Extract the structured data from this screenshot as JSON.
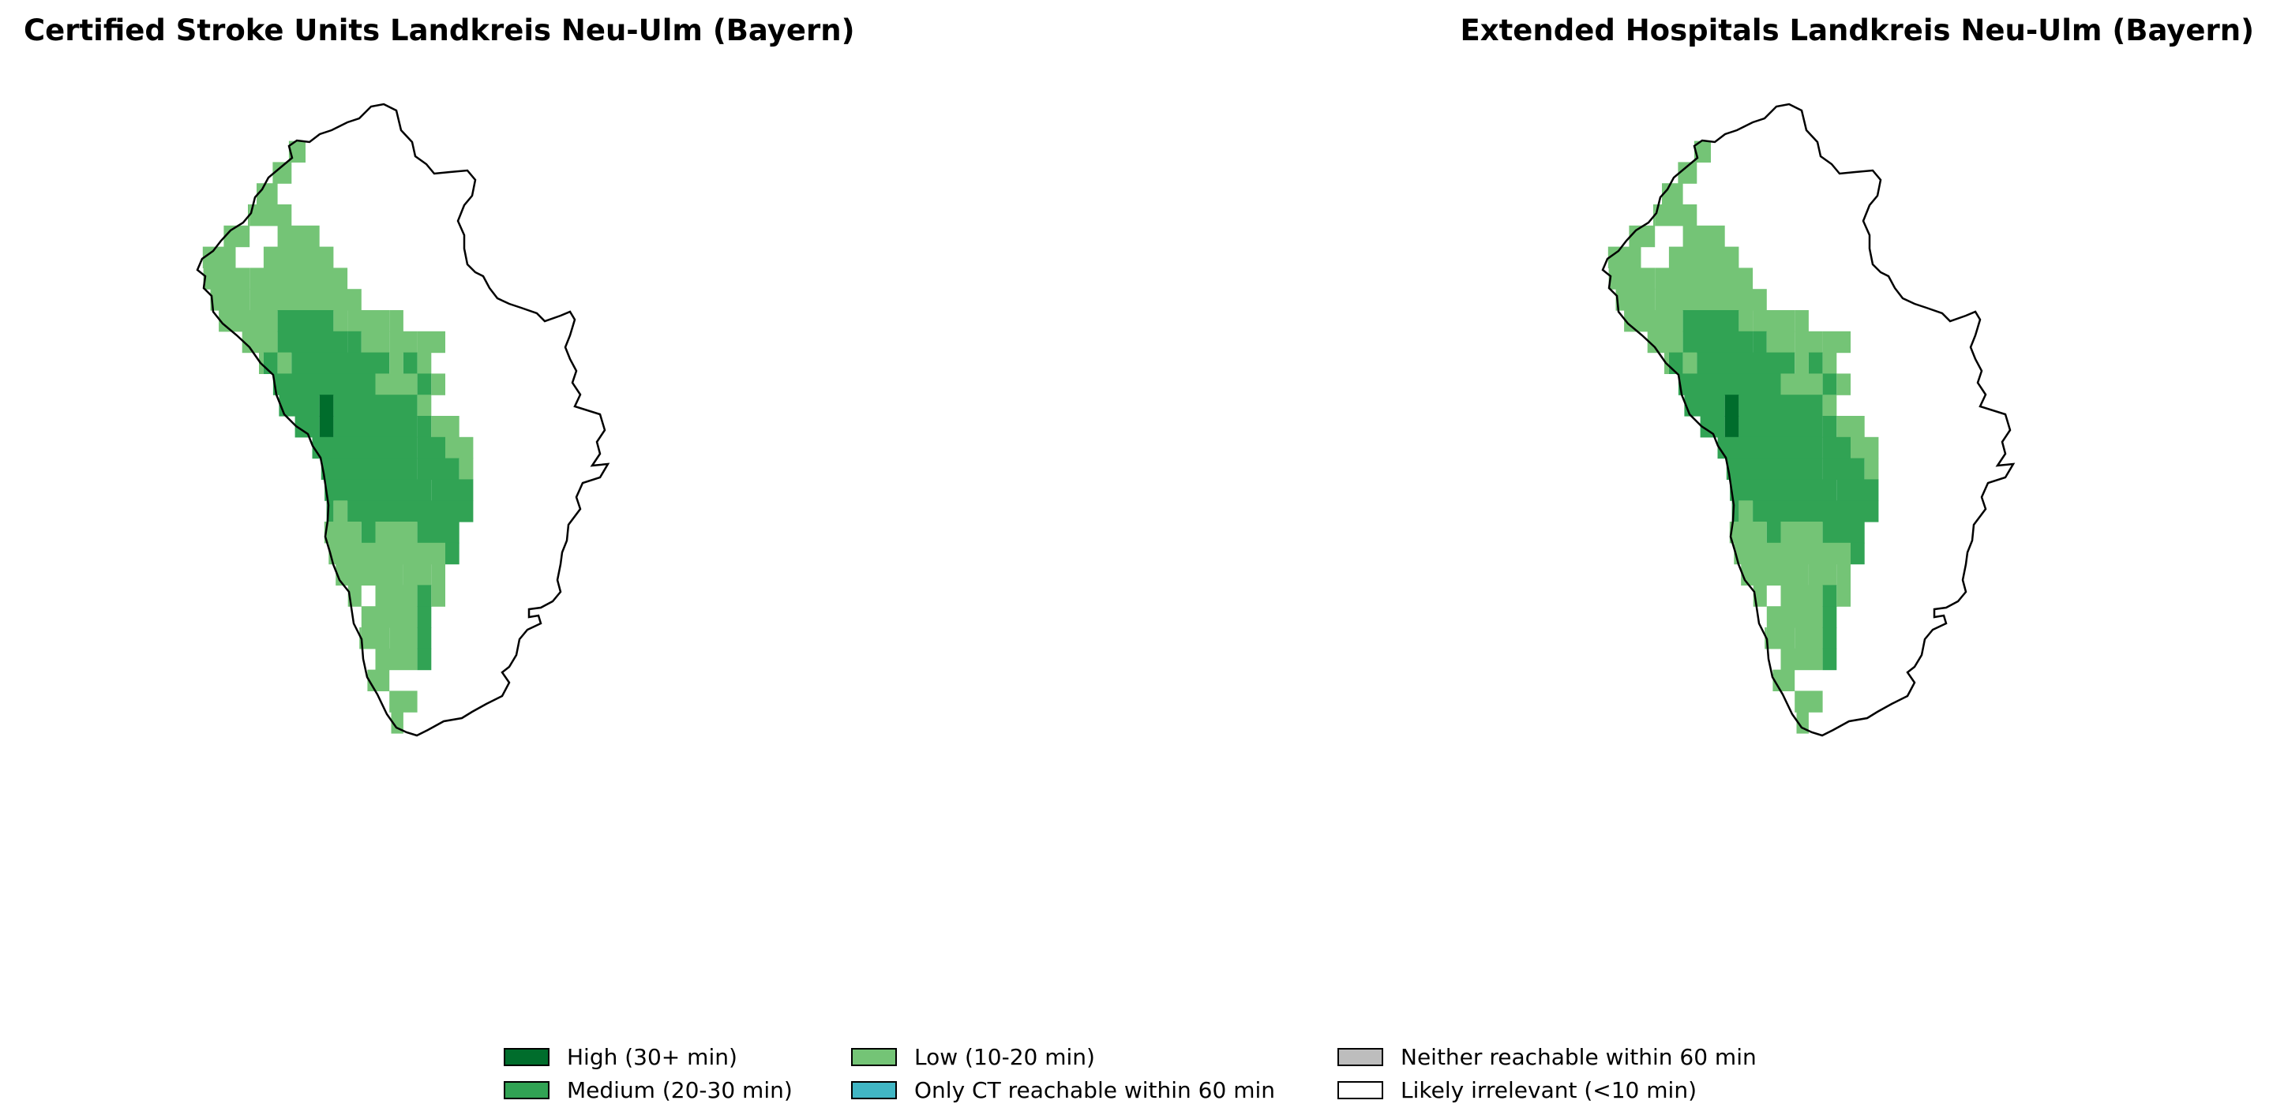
{
  "panels": [
    {
      "title": "Certified Stroke Units Landkreis Neu-Ulm (Bayern)"
    },
    {
      "title": "Extended Hospitals Landkreis Neu-Ulm (Bayern)"
    }
  ],
  "legend": [
    {
      "label": "High (30+ min)",
      "color": "#006d2c",
      "key": "high"
    },
    {
      "label": "Medium (20-30 min)",
      "color": "#31a354",
      "key": "medium"
    },
    {
      "label": "Low (10-20 min)",
      "color": "#74c476",
      "key": "low"
    },
    {
      "label": "Only CT reachable within 60 min",
      "color": "#41b6c4",
      "key": "ct"
    },
    {
      "label": "Neither reachable within 60 min",
      "color": "#bdbdbd",
      "key": "neither"
    },
    {
      "label": "Likely irrelevant (<10 min)",
      "color": "#ffffff",
      "key": "irrelevant"
    }
  ],
  "boundary_color": "#000000"
}
